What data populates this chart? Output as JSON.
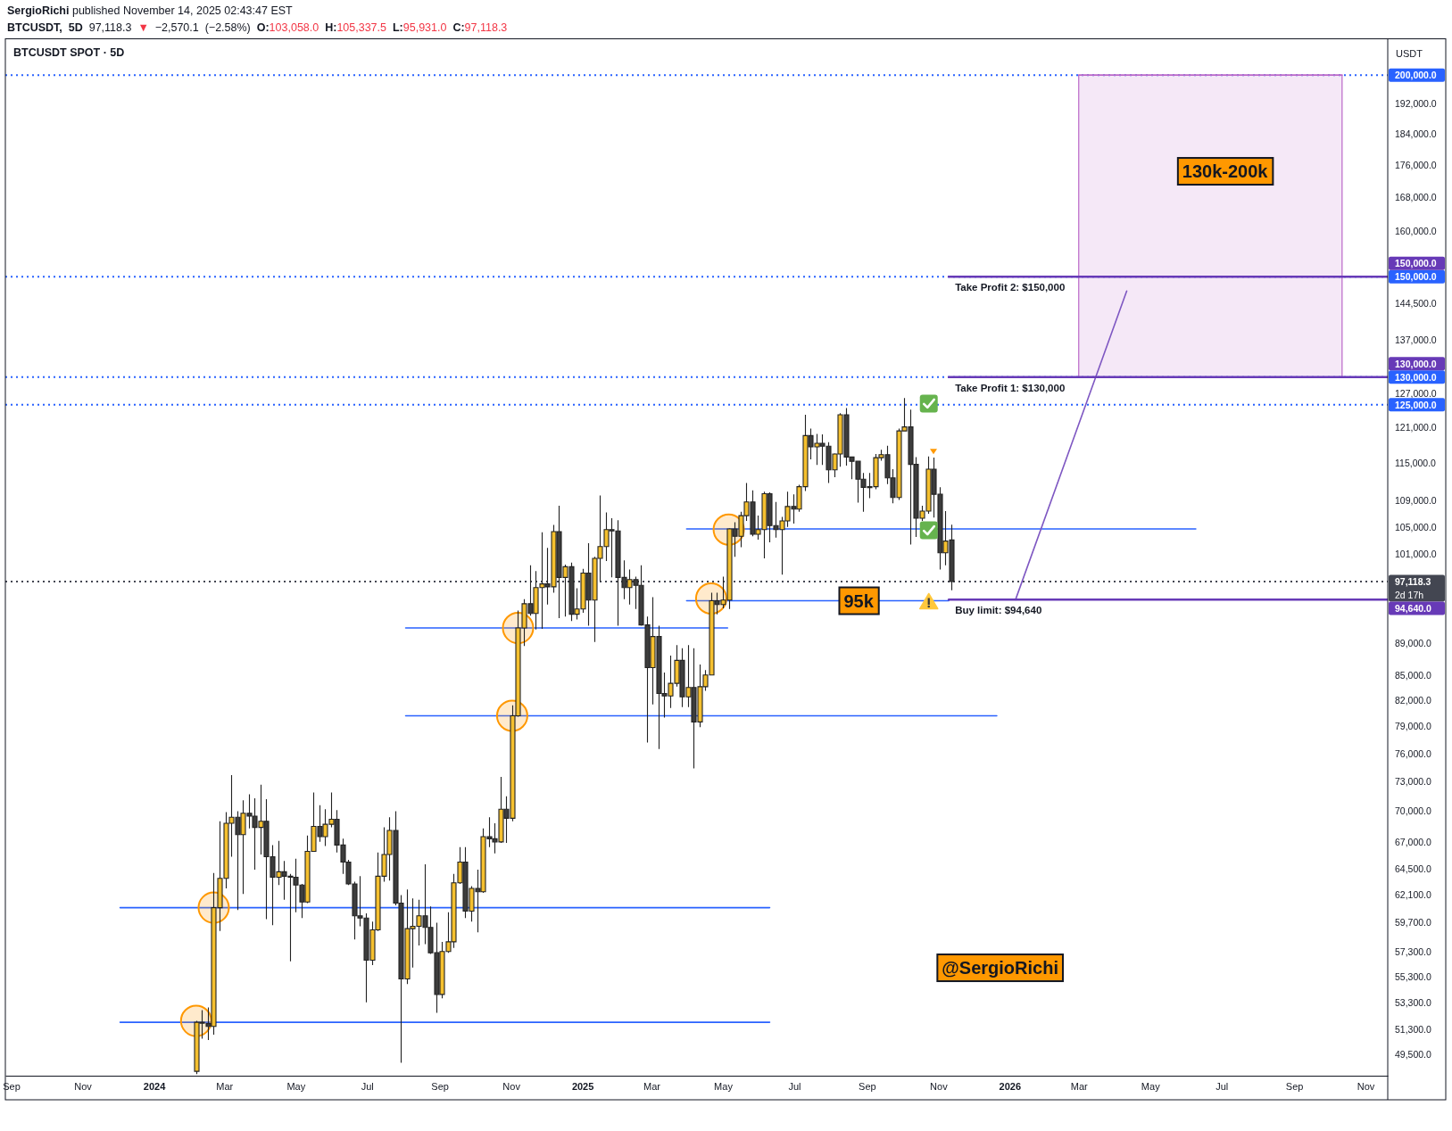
{
  "chart_data": {
    "type": "candlestick",
    "title": "BTCUSDT SPOT · 5D",
    "subtitle": "BTCUSDT, 5D 97,118.3 ▼ −2,570.1 (−2.58%) O:103,058.0 H:105,337.5 L:95,931.0 C:97,118.3",
    "ylabel": "USDT",
    "log": true,
    "xlim": [
      "2023-08-27",
      "2026-11-20"
    ],
    "xticks": [
      {
        "value": "2023-09-01",
        "label": "Sep"
      },
      {
        "value": "2023-11-01",
        "label": "Nov"
      },
      {
        "value": "2024-01-01",
        "label": "2024"
      },
      {
        "value": "2024-03-01",
        "label": "Mar"
      },
      {
        "value": "2024-05-01",
        "label": "May"
      },
      {
        "value": "2024-07-01",
        "label": "Jul"
      },
      {
        "value": "2024-09-01",
        "label": "Sep"
      },
      {
        "value": "2024-11-01",
        "label": "Nov"
      },
      {
        "value": "2025-01-01",
        "label": "2025"
      },
      {
        "value": "2025-03-01",
        "label": "Mar"
      },
      {
        "value": "2025-05-01",
        "label": "May"
      },
      {
        "value": "2025-07-01",
        "label": "Jul"
      },
      {
        "value": "2025-09-01",
        "label": "Sep"
      },
      {
        "value": "2025-11-01",
        "label": "Nov"
      },
      {
        "value": "2026-01-01",
        "label": "2026"
      },
      {
        "value": "2026-03-01",
        "label": "Mar"
      },
      {
        "value": "2026-05-01",
        "label": "May"
      },
      {
        "value": "2026-07-01",
        "label": "Jul"
      },
      {
        "value": "2026-09-01",
        "label": "Sep"
      },
      {
        "value": "2026-11-01",
        "label": "Nov"
      }
    ],
    "ylim": [
      48000,
      210500
    ],
    "yticks": [
      {
        "value": 49500,
        "label": "49,500.0"
      },
      {
        "value": 51300,
        "label": "51,300.0"
      },
      {
        "value": 53300,
        "label": "53,300.0"
      },
      {
        "value": 55300,
        "label": "55,300.0"
      },
      {
        "value": 57300,
        "label": "57,300.0"
      },
      {
        "value": 59700,
        "label": "59,700.0"
      },
      {
        "value": 62100,
        "label": "62,100.0"
      },
      {
        "value": 64500,
        "label": "64,500.0"
      },
      {
        "value": 67000,
        "label": "67,000.0"
      },
      {
        "value": 70000,
        "label": "70,000.0"
      },
      {
        "value": 73000,
        "label": "73,000.0"
      },
      {
        "value": 76000,
        "label": "76,000.0"
      },
      {
        "value": 79000,
        "label": "79,000.0"
      },
      {
        "value": 82000,
        "label": "82,000.0"
      },
      {
        "value": 85000,
        "label": "85,000.0"
      },
      {
        "value": 89000,
        "label": "89,000.0"
      },
      {
        "value": 101000,
        "label": "101,000.0"
      },
      {
        "value": 105000,
        "label": "105,000.0"
      },
      {
        "value": 109000,
        "label": "109,000.0"
      },
      {
        "value": 115000,
        "label": "115,000.0"
      },
      {
        "value": 121000,
        "label": "121,000.0"
      },
      {
        "value": 127000,
        "label": "127,000.0"
      },
      {
        "value": 137000,
        "label": "137,000.0"
      },
      {
        "value": 144500,
        "label": "144,500.0"
      },
      {
        "value": 160000,
        "label": "160,000.0"
      },
      {
        "value": 168000,
        "label": "168,000.0"
      },
      {
        "value": 176000,
        "label": "176,000.0"
      },
      {
        "value": 184000,
        "label": "184,000.0"
      },
      {
        "value": 192000,
        "label": "192,000.0"
      }
    ],
    "ref_lines": [
      {
        "axis": "y",
        "value": 200000,
        "label": "200,000.0",
        "color": "#2962ff",
        "line_style": "dotted"
      },
      {
        "axis": "y",
        "value": 150000,
        "label": "150,000.0",
        "color": "#2962ff",
        "line_style": "dotted"
      },
      {
        "axis": "y",
        "value": 130000,
        "label": "130,000.0",
        "color": "#2962ff",
        "line_style": "dotted"
      },
      {
        "axis": "y",
        "value": 125000,
        "label": "125,000.0",
        "color": "#2962ff",
        "line_style": "dotted"
      },
      {
        "axis": "y",
        "value": 97118.3,
        "label": "97,118.3\n2d 17h",
        "color": "#434651",
        "line_style": "dotted"
      }
    ],
    "annotations": [
      "SergioRichi published November 14, 2025 02:43:47 EST",
      "@SergioRichi",
      "130k-200k",
      {
        "text": "95k",
        "x": "2025-08-25",
        "y": 94500
      }
    ],
    "series": [
      {
        "type": "line",
        "color": "#ba68c8",
        "x": [
          "2026-03-01",
          "2026-10-12"
        ],
        "values": [
          200000,
          200000
        ],
        "upper": [
          200000,
          200000
        ],
        "lower": [
          130000,
          130000
        ]
      },
      {
        "type": "line",
        "color": "#2962ff",
        "x": [
          "2025-03-31",
          "2026-06-09"
        ],
        "values": [
          104700,
          104700
        ]
      },
      {
        "type": "line",
        "color": "#2962ff",
        "x": [
          "2025-03-31",
          "2025-11-10"
        ],
        "values": [
          94500,
          94500
        ]
      },
      {
        "type": "line",
        "color": "#2962ff",
        "x": [
          "2024-08-03",
          "2025-05-05"
        ],
        "values": [
          90900,
          90900
        ]
      },
      {
        "type": "line",
        "color": "#2962ff",
        "x": [
          "2024-08-03",
          "2025-12-21"
        ],
        "values": [
          80200,
          80200
        ]
      },
      {
        "type": "line",
        "color": "#2962ff",
        "x": [
          "2023-12-03",
          "2025-06-10"
        ],
        "values": [
          61000,
          61000
        ]
      },
      {
        "type": "line",
        "color": "#2962ff",
        "x": [
          "2023-12-03",
          "2025-06-10"
        ],
        "values": [
          51800,
          51800
        ]
      },
      {
        "type": "line",
        "color": "#7e57c2",
        "x": [
          "2026-01-06",
          "2026-04-11"
        ],
        "values": [
          94640,
          147000
        ]
      },
      {
        "type": "line",
        "name": "Take Profit 2: $150,000",
        "color": "#673ab7",
        "x": [
          "2025-11-10",
          "2026-11-20"
        ],
        "values": [
          150000,
          150000
        ],
        "value_labels": [
          null,
          "150,000.0"
        ]
      },
      {
        "type": "line",
        "name": "Take Profit 1: $130,000",
        "color": "#673ab7",
        "x": [
          "2025-11-10",
          "2026-11-20"
        ],
        "values": [
          130000,
          130000
        ],
        "value_labels": [
          null,
          "130,000.0"
        ]
      },
      {
        "type": "line",
        "name": "Buy limit: $94,640",
        "color": "#673ab7",
        "x": [
          "2025-11-10",
          "2026-11-20"
        ],
        "values": [
          94640,
          94640
        ],
        "value_labels": [
          null,
          "94,640.0"
        ]
      },
      {
        "type": "scatter",
        "color": "#ff9800",
        "marker": "circle",
        "x": [
          "2024-02-06",
          "2024-02-21",
          "2024-11-02",
          "2024-11-07",
          "2025-04-21",
          "2025-05-06"
        ],
        "values": [
          51900,
          61000,
          80200,
          90900,
          94800,
          104600
        ]
      },
      {
        "x": [
          "2024-02-06",
          "2024-02-11",
          "2024-02-16",
          "2024-02-21",
          "2024-02-26",
          "2024-03-02",
          "2024-03-07",
          "2024-03-12",
          "2024-03-17",
          "2024-03-22",
          "2024-03-27",
          "2024-04-01",
          "2024-04-06",
          "2024-04-11",
          "2024-04-16",
          "2024-04-21",
          "2024-04-26",
          "2024-05-01",
          "2024-05-06",
          "2024-05-11",
          "2024-05-16",
          "2024-05-21",
          "2024-05-26",
          "2024-05-31",
          "2024-06-05",
          "2024-06-10",
          "2024-06-15",
          "2024-06-20",
          "2024-06-25",
          "2024-06-30",
          "2024-07-05",
          "2024-07-10",
          "2024-07-15",
          "2024-07-20",
          "2024-07-25",
          "2024-07-30",
          "2024-08-04",
          "2024-08-09",
          "2024-08-14",
          "2024-08-19",
          "2024-08-24",
          "2024-08-29",
          "2024-09-03",
          "2024-09-08",
          "2024-09-13",
          "2024-09-18",
          "2024-09-23",
          "2024-09-28",
          "2024-10-03",
          "2024-10-08",
          "2024-10-13",
          "2024-10-18",
          "2024-10-23",
          "2024-10-28",
          "2024-11-02",
          "2024-11-07",
          "2024-11-12",
          "2024-11-17",
          "2024-11-22",
          "2024-11-27",
          "2024-12-02",
          "2024-12-07",
          "2024-12-12",
          "2024-12-17",
          "2024-12-22",
          "2024-12-27",
          "2025-01-01",
          "2025-01-06",
          "2025-01-11",
          "2025-01-16",
          "2025-01-21",
          "2025-01-26",
          "2025-01-31",
          "2025-02-05",
          "2025-02-10",
          "2025-02-15",
          "2025-02-20",
          "2025-02-25",
          "2025-03-02",
          "2025-03-07",
          "2025-03-12",
          "2025-03-17",
          "2025-03-22",
          "2025-03-27",
          "2025-04-01",
          "2025-04-06",
          "2025-04-11",
          "2025-04-16",
          "2025-04-21",
          "2025-04-26",
          "2025-05-01",
          "2025-05-06",
          "2025-05-11",
          "2025-05-16",
          "2025-05-21",
          "2025-05-26",
          "2025-05-31",
          "2025-06-05",
          "2025-06-10",
          "2025-06-15",
          "2025-06-20",
          "2025-06-25",
          "2025-06-30",
          "2025-07-05",
          "2025-07-10",
          "2025-07-15",
          "2025-07-20",
          "2025-07-25",
          "2025-07-30",
          "2025-08-04",
          "2025-08-09",
          "2025-08-14",
          "2025-08-19",
          "2025-08-24",
          "2025-08-29",
          "2025-09-03",
          "2025-09-08",
          "2025-09-13",
          "2025-09-18",
          "2025-09-23",
          "2025-09-28",
          "2025-10-03",
          "2025-10-08",
          "2025-10-13",
          "2025-10-18",
          "2025-10-23",
          "2025-10-28",
          "2025-11-02",
          "2025-11-07",
          "2025-11-12"
        ],
        "ohlc": [
          [
            48300,
            51900,
            48100,
            51800
          ],
          [
            51800,
            52700,
            50600,
            51800
          ],
          [
            51700,
            52900,
            50500,
            51500
          ],
          [
            51500,
            64100,
            50900,
            61000
          ],
          [
            61000,
            69000,
            59000,
            63600
          ],
          [
            63600,
            69900,
            62700,
            68800
          ],
          [
            68800,
            73700,
            65600,
            69400
          ],
          [
            69400,
            70000,
            60800,
            67700
          ],
          [
            67700,
            71100,
            62200,
            69800
          ],
          [
            69800,
            71700,
            68300,
            69500
          ],
          [
            69500,
            71300,
            64400,
            68400
          ],
          [
            68400,
            72700,
            65800,
            69000
          ],
          [
            69000,
            71200,
            60000,
            65600
          ],
          [
            65600,
            66700,
            59500,
            63700
          ],
          [
            63700,
            67100,
            63000,
            64200
          ],
          [
            64200,
            65200,
            61700,
            63800
          ],
          [
            63800,
            64000,
            56500,
            63700
          ],
          [
            63700,
            65400,
            60600,
            63000
          ],
          [
            63000,
            63100,
            60100,
            61500
          ],
          [
            61500,
            67600,
            61400,
            66100
          ],
          [
            66100,
            71900,
            66100,
            68500
          ],
          [
            68500,
            70600,
            67000,
            67500
          ],
          [
            67500,
            70200,
            66600,
            68700
          ],
          [
            68700,
            71900,
            68400,
            69200
          ],
          [
            69200,
            70100,
            66000,
            66700
          ],
          [
            66700,
            67300,
            64000,
            65100
          ],
          [
            65100,
            65300,
            63000,
            63100
          ],
          [
            63100,
            63300,
            58300,
            60300
          ],
          [
            60300,
            63800,
            59400,
            60100
          ],
          [
            60100,
            60500,
            53300,
            56600
          ],
          [
            56600,
            59800,
            56200,
            59100
          ],
          [
            59100,
            66000,
            59000,
            63800
          ],
          [
            63800,
            68400,
            63300,
            65800
          ],
          [
            65800,
            69400,
            63400,
            68100
          ],
          [
            68100,
            70000,
            61200,
            61400
          ],
          [
            61400,
            62100,
            48900,
            55100
          ],
          [
            55100,
            62600,
            54700,
            59200
          ],
          [
            59200,
            61800,
            56000,
            59400
          ],
          [
            59400,
            61700,
            57800,
            60300
          ],
          [
            60300,
            64900,
            57900,
            59300
          ],
          [
            59300,
            61100,
            57100,
            57200
          ],
          [
            57200,
            59700,
            52500,
            53900
          ],
          [
            53900,
            58100,
            53600,
            57300
          ],
          [
            57300,
            60600,
            57200,
            58100
          ],
          [
            58100,
            64000,
            57600,
            63200
          ],
          [
            63200,
            66500,
            63100,
            65100
          ],
          [
            65100,
            66500,
            60100,
            60700
          ],
          [
            60700,
            62900,
            59800,
            62700
          ],
          [
            62700,
            64400,
            58900,
            62400
          ],
          [
            62400,
            68300,
            62300,
            67500
          ],
          [
            67500,
            69400,
            66500,
            67300
          ],
          [
            67300,
            68800,
            65900,
            67000
          ],
          [
            67000,
            73500,
            66900,
            70200
          ],
          [
            70200,
            71500,
            66900,
            69300
          ],
          [
            69300,
            81400,
            69000,
            80200
          ],
          [
            80200,
            93200,
            80100,
            90900
          ],
          [
            90900,
            94700,
            88600,
            94100
          ],
          [
            94100,
            99400,
            92500,
            92800
          ],
          [
            92800,
            98600,
            90700,
            96300
          ],
          [
            96300,
            104200,
            90800,
            96800
          ],
          [
            96800,
            101900,
            94000,
            96400
          ],
          [
            96400,
            105300,
            95600,
            104300
          ],
          [
            104300,
            108200,
            92200,
            97700
          ],
          [
            97700,
            99500,
            92400,
            99200
          ],
          [
            99200,
            99800,
            91800,
            92700
          ],
          [
            92700,
            96200,
            92000,
            93400
          ],
          [
            93400,
            98900,
            92900,
            98300
          ],
          [
            98300,
            102600,
            91200,
            94600
          ],
          [
            94600,
            100600,
            89100,
            100400
          ],
          [
            100400,
            109800,
            97200,
            102100
          ],
          [
            102100,
            107200,
            100000,
            104600
          ],
          [
            104600,
            106300,
            97700,
            104400
          ],
          [
            104400,
            106000,
            91200,
            97700
          ],
          [
            97700,
            100100,
            94700,
            96300
          ],
          [
            96300,
            98800,
            94000,
            97400
          ],
          [
            97400,
            97800,
            93400,
            96600
          ],
          [
            96600,
            99400,
            91200,
            91300
          ],
          [
            91300,
            92400,
            77200,
            85900
          ],
          [
            85900,
            95000,
            81500,
            89800
          ],
          [
            89800,
            91200,
            76500,
            82800
          ],
          [
            82800,
            85300,
            80000,
            82500
          ],
          [
            82500,
            87400,
            81100,
            84000
          ],
          [
            84000,
            88700,
            83600,
            86800
          ],
          [
            86800,
            88300,
            81200,
            82400
          ],
          [
            82400,
            88700,
            81200,
            83500
          ],
          [
            83500,
            88300,
            74400,
            79500
          ],
          [
            79500,
            86300,
            78900,
            83600
          ],
          [
            83600,
            85600,
            83100,
            85000
          ],
          [
            85000,
            95600,
            85000,
            94500
          ],
          [
            94500,
            95600,
            92700,
            94000
          ],
          [
            94000,
            97800,
            93500,
            94600
          ],
          [
            94600,
            104800,
            93400,
            104700
          ],
          [
            104700,
            105700,
            100600,
            103600
          ],
          [
            103600,
            107300,
            102000,
            106700
          ],
          [
            106700,
            111800,
            105900,
            108800
          ],
          [
            108800,
            110600,
            103600,
            103900
          ],
          [
            103900,
            106700,
            103100,
            104600
          ],
          [
            104600,
            110400,
            100400,
            110100
          ],
          [
            110100,
            110300,
            102700,
            105200
          ],
          [
            105200,
            108800,
            103400,
            104600
          ],
          [
            104600,
            106500,
            98100,
            105900
          ],
          [
            105900,
            110400,
            105000,
            108100
          ],
          [
            108100,
            110000,
            105500,
            107700
          ],
          [
            107700,
            111500,
            107300,
            111200
          ],
          [
            111200,
            123200,
            110500,
            119600
          ],
          [
            119600,
            120800,
            115600,
            117700
          ],
          [
            117700,
            119900,
            114700,
            118300
          ],
          [
            118300,
            119800,
            114700,
            117800
          ],
          [
            117800,
            118500,
            111800,
            113900
          ],
          [
            113900,
            116600,
            112700,
            116500
          ],
          [
            116500,
            123500,
            114400,
            123200
          ],
          [
            123200,
            124400,
            114600,
            116000
          ],
          [
            116000,
            116100,
            112400,
            115300
          ],
          [
            115300,
            115400,
            108700,
            112400
          ],
          [
            112400,
            113400,
            107300,
            111100
          ],
          [
            111100,
            113400,
            109400,
            111200
          ],
          [
            111200,
            116500,
            110800,
            115900
          ],
          [
            115900,
            117200,
            115400,
            116400
          ],
          [
            116400,
            117900,
            111600,
            112600
          ],
          [
            112600,
            114000,
            108600,
            109500
          ],
          [
            109500,
            120800,
            109100,
            120400
          ],
          [
            120400,
            126200,
            120300,
            121100
          ],
          [
            121100,
            124100,
            102400,
            114800
          ],
          [
            114800,
            116000,
            103500,
            106300
          ],
          [
            106300,
            108200,
            105900,
            107400
          ],
          [
            107400,
            116100,
            107000,
            114000
          ],
          [
            114000,
            115900,
            106400,
            110000
          ],
          [
            110000,
            111100,
            98800,
            101200
          ],
          [
            101200,
            107400,
            99400,
            102900
          ],
          [
            103058,
            105337.5,
            95931,
            97118.3
          ]
        ],
        "colors": [
          "#f5c02f",
          "#f5c02f",
          "#3c3c3c",
          "#f5c02f",
          "#f5c02f",
          "#f5c02f",
          "#f5c02f",
          "#3c3c3c",
          "#f5c02f",
          "#3c3c3c",
          "#3c3c3c",
          "#f5c02f",
          "#3c3c3c",
          "#3c3c3c",
          "#f5c02f",
          "#3c3c3c",
          "#3c3c3c",
          "#3c3c3c",
          "#3c3c3c",
          "#f5c02f",
          "#f5c02f",
          "#3c3c3c",
          "#f5c02f",
          "#f5c02f",
          "#3c3c3c",
          "#3c3c3c",
          "#3c3c3c",
          "#3c3c3c",
          "#3c3c3c",
          "#3c3c3c",
          "#f5c02f",
          "#f5c02f",
          "#f5c02f",
          "#f5c02f",
          "#3c3c3c",
          "#3c3c3c",
          "#f5c02f",
          "#f5c02f",
          "#f5c02f",
          "#3c3c3c",
          "#3c3c3c",
          "#3c3c3c",
          "#f5c02f",
          "#f5c02f",
          "#f5c02f",
          "#f5c02f",
          "#3c3c3c",
          "#f5c02f",
          "#3c3c3c",
          "#f5c02f",
          "#3c3c3c",
          "#3c3c3c",
          "#f5c02f",
          "#3c3c3c",
          "#f5c02f",
          "#f5c02f",
          "#f5c02f",
          "#3c3c3c",
          "#f5c02f",
          "#f5c02f",
          "#3c3c3c",
          "#f5c02f",
          "#3c3c3c",
          "#f5c02f",
          "#3c3c3c",
          "#f5c02f",
          "#f5c02f",
          "#3c3c3c",
          "#f5c02f",
          "#f5c02f",
          "#f5c02f",
          "#3c3c3c",
          "#3c3c3c",
          "#3c3c3c",
          "#f5c02f",
          "#3c3c3c",
          "#3c3c3c",
          "#3c3c3c",
          "#f5c02f",
          "#3c3c3c",
          "#3c3c3c",
          "#f5c02f",
          "#f5c02f",
          "#3c3c3c",
          "#f5c02f",
          "#3c3c3c",
          "#f5c02f",
          "#f5c02f",
          "#f5c02f",
          "#3c3c3c",
          "#f5c02f",
          "#f5c02f",
          "#3c3c3c",
          "#f5c02f",
          "#f5c02f",
          "#3c3c3c",
          "#f5c02f",
          "#f5c02f",
          "#3c3c3c",
          "#3c3c3c",
          "#f5c02f",
          "#f5c02f",
          "#3c3c3c",
          "#f5c02f",
          "#f5c02f",
          "#3c3c3c",
          "#f5c02f",
          "#3c3c3c",
          "#3c3c3c",
          "#f5c02f",
          "#f5c02f",
          "#3c3c3c",
          "#3c3c3c",
          "#3c3c3c",
          "#3c3c3c",
          "#f5c02f",
          "#f5c02f",
          "#f5c02f",
          "#3c3c3c",
          "#3c3c3c",
          "#f5c02f",
          "#f5c02f",
          "#3c3c3c",
          "#3c3c3c",
          "#f5c02f",
          "#f5c02f",
          "#3c3c3c",
          "#3c3c3c",
          "#f5c02f",
          "#3c3c3c"
        ]
      }
    ]
  }
}
